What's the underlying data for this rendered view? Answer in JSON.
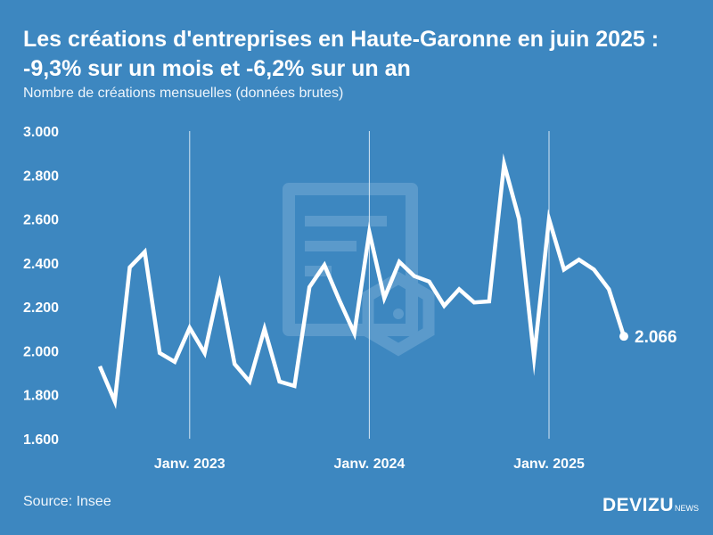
{
  "header": {
    "title": "Les créations d'entreprises en Haute-Garonne en juin 2025 : -9,3% sur un mois et -6,2% sur un an",
    "subtitle": "Nombre de créations mensuelles (données brutes)"
  },
  "footer": {
    "source": "Source: Insee",
    "brand": "DEVIZU",
    "brand_sub": "NEWS"
  },
  "colors": {
    "background": "#3d87c0",
    "line": "#ffffff",
    "watermark": "#5b9acb"
  },
  "chart_data": {
    "type": "line",
    "title": "Les créations d'entreprises en Haute-Garonne en juin 2025 : -9,3% sur un mois et -6,2% sur un an",
    "subtitle": "Nombre de créations mensuelles (données brutes)",
    "xlabel": "",
    "ylabel": "",
    "ylim": [
      1600,
      3000
    ],
    "yticks": [
      {
        "value": 3000,
        "label": "3.000"
      },
      {
        "value": 2800,
        "label": "2.800"
      },
      {
        "value": 2600,
        "label": "2.600"
      },
      {
        "value": 2400,
        "label": "2.400"
      },
      {
        "value": 2200,
        "label": "2.200"
      },
      {
        "value": 2000,
        "label": "2.000"
      },
      {
        "value": 1800,
        "label": "1.800"
      },
      {
        "value": 1600,
        "label": "1.600"
      }
    ],
    "xticks": [
      {
        "date": "2023-01",
        "label": "Janv. 2023"
      },
      {
        "date": "2024-01",
        "label": "Janv. 2024"
      },
      {
        "date": "2025-01",
        "label": "Janv. 2025"
      }
    ],
    "grid": {
      "vertical_at_xticks": true,
      "horizontal": false
    },
    "series": [
      {
        "x": [
          "2022-07",
          "2022-08",
          "2022-09",
          "2022-10",
          "2022-11",
          "2022-12",
          "2023-01",
          "2023-02",
          "2023-03",
          "2023-04",
          "2023-05",
          "2023-06",
          "2023-07",
          "2023-08",
          "2023-09",
          "2023-10",
          "2023-11",
          "2023-12",
          "2024-01",
          "2024-02",
          "2024-03",
          "2024-04",
          "2024-05",
          "2024-06",
          "2024-07",
          "2024-08",
          "2024-09",
          "2024-10",
          "2024-11",
          "2024-12",
          "2025-01",
          "2025-02",
          "2025-03",
          "2025-04",
          "2025-05",
          "2025-06"
        ],
        "values": [
          1930,
          1770,
          2380,
          2450,
          1990,
          1950,
          2105,
          1990,
          2300,
          1940,
          1860,
          2100,
          1860,
          1840,
          2290,
          2390,
          2230,
          2080,
          2540,
          2240,
          2405,
          2340,
          2315,
          2205,
          2280,
          2220,
          2225,
          2850,
          2600,
          1970,
          2600,
          2370,
          2415,
          2370,
          2280,
          2066
        ]
      }
    ],
    "end_label": "2.066"
  }
}
